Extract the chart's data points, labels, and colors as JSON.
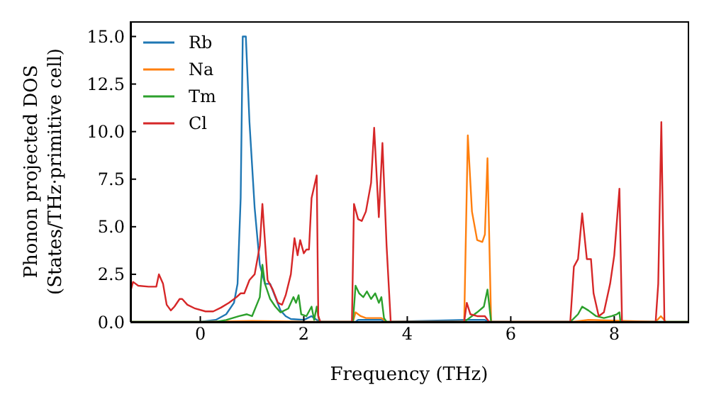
{
  "chart_data": {
    "type": "line",
    "xlabel": "Frequency (THz)",
    "ylabel": "Phonon projected DOS\n(States/THz·primitive cell)",
    "xlim": [
      -1.35,
      9.42
    ],
    "xticks": [
      0,
      2,
      4,
      6,
      8
    ],
    "ylim": [
      0,
      15.8
    ],
    "yticks": [
      {
        "value": 0,
        "label": "0.0"
      },
      {
        "value": 2.5,
        "label": "2.5"
      },
      {
        "value": 5,
        "label": "5.0"
      },
      {
        "value": 7.5,
        "label": "7.5"
      },
      {
        "value": 10,
        "label": "10.0"
      },
      {
        "value": 12.5,
        "label": "12.5"
      },
      {
        "value": 15,
        "label": "15.0"
      }
    ],
    "grid": false,
    "legend": "top left",
    "marker": "none",
    "line_style": "solid",
    "series": [
      {
        "name": "Rb",
        "color": "#1f77b4",
        "x": [
          -1.35,
          0,
          0.3,
          0.5,
          0.65,
          0.72,
          0.78,
          0.82,
          0.88,
          0.95,
          1.05,
          1.15,
          1.25,
          1.35,
          1.45,
          1.55,
          1.65,
          1.75,
          2.0,
          2.15,
          2.25,
          2.3,
          3.0,
          3.05,
          3.5,
          3.6,
          5.15,
          5.5,
          5.6,
          9.42
        ],
        "values": [
          0,
          0,
          0.1,
          0.4,
          1.0,
          2.0,
          6.5,
          15.0,
          15.0,
          10.5,
          6.0,
          3.0,
          2.0,
          2.0,
          1.3,
          0.6,
          0.3,
          0.15,
          0.1,
          0.3,
          0.1,
          0,
          0,
          0.1,
          0.1,
          0,
          0.1,
          0.1,
          0,
          0
        ]
      },
      {
        "name": "Na",
        "color": "#ff7f0e",
        "x": [
          -1.35,
          0,
          1.0,
          2.3,
          2.95,
          3.0,
          3.1,
          3.2,
          3.5,
          3.6,
          5.1,
          5.17,
          5.25,
          5.35,
          5.45,
          5.5,
          5.55,
          5.62,
          7.2,
          7.5,
          8.8,
          8.9,
          9.0,
          9.42
        ],
        "values": [
          0,
          0,
          0.05,
          0,
          0,
          0.5,
          0.3,
          0.2,
          0.2,
          0,
          0,
          9.8,
          5.8,
          4.3,
          4.2,
          4.6,
          8.6,
          0,
          0,
          0.1,
          0,
          0.3,
          0,
          0
        ]
      },
      {
        "name": "Tm",
        "color": "#2ca02c",
        "x": [
          -1.35,
          0.3,
          0.5,
          0.75,
          0.9,
          1.0,
          1.15,
          1.2,
          1.25,
          1.35,
          1.45,
          1.55,
          1.7,
          1.8,
          1.85,
          1.9,
          1.95,
          2.05,
          2.15,
          2.2,
          2.25,
          2.3,
          2.95,
          3.0,
          3.07,
          3.15,
          3.22,
          3.3,
          3.38,
          3.45,
          3.5,
          3.55,
          3.6,
          5.1,
          5.2,
          5.35,
          5.48,
          5.55,
          5.62,
          7.15,
          7.3,
          7.38,
          7.5,
          7.65,
          7.8,
          7.95,
          8.05,
          8.1,
          8.12,
          9.42
        ],
        "values": [
          0,
          0,
          0.1,
          0.3,
          0.4,
          0.3,
          1.3,
          3.0,
          2.0,
          1.2,
          0.8,
          0.5,
          0.7,
          1.3,
          1.0,
          1.4,
          0.4,
          0.3,
          0.8,
          0.1,
          0.8,
          0,
          0,
          1.9,
          1.5,
          1.3,
          1.6,
          1.2,
          1.5,
          1.0,
          1.3,
          0.2,
          0,
          0,
          0.2,
          0.5,
          0.8,
          1.7,
          0,
          0,
          0.4,
          0.8,
          0.6,
          0.3,
          0.2,
          0.3,
          0.4,
          0.5,
          0,
          0
        ]
      },
      {
        "name": "Cl",
        "color": "#d62728",
        "x": [
          -1.35,
          -1.3,
          -1.2,
          -1.0,
          -0.85,
          -0.8,
          -0.72,
          -0.65,
          -0.57,
          -0.5,
          -0.4,
          -0.35,
          -0.25,
          -0.1,
          0.1,
          0.25,
          0.4,
          0.55,
          0.7,
          0.78,
          0.85,
          0.95,
          1.05,
          1.15,
          1.2,
          1.3,
          1.4,
          1.5,
          1.58,
          1.65,
          1.75,
          1.82,
          1.88,
          1.93,
          2.0,
          2.05,
          2.1,
          2.15,
          2.25,
          2.28,
          2.32,
          2.93,
          2.97,
          3.05,
          3.12,
          3.2,
          3.3,
          3.36,
          3.45,
          3.52,
          3.6,
          3.68,
          5.1,
          5.15,
          5.22,
          5.35,
          5.5,
          5.58,
          7.15,
          7.22,
          7.3,
          7.38,
          7.47,
          7.55,
          7.6,
          7.7,
          7.8,
          7.92,
          8.0,
          8.1,
          8.15,
          8.8,
          8.85,
          8.91,
          8.97
        ],
        "values": [
          1.6,
          2.1,
          1.9,
          1.85,
          1.85,
          2.5,
          2.0,
          0.9,
          0.6,
          0.8,
          1.2,
          1.2,
          0.9,
          0.7,
          0.55,
          0.55,
          0.75,
          1.0,
          1.3,
          1.5,
          1.5,
          2.2,
          2.5,
          4.0,
          6.2,
          2.2,
          1.7,
          1.0,
          0.9,
          1.4,
          2.5,
          4.4,
          3.5,
          4.3,
          3.6,
          3.8,
          3.8,
          6.5,
          7.7,
          0.3,
          0,
          0,
          6.2,
          5.4,
          5.3,
          5.8,
          7.3,
          10.2,
          5.5,
          9.4,
          4.0,
          0,
          0,
          1.0,
          0.4,
          0.3,
          0.3,
          0,
          0,
          2.9,
          3.3,
          5.7,
          3.3,
          3.3,
          1.5,
          0.3,
          0.5,
          2.0,
          3.5,
          7.0,
          0,
          0,
          2.0,
          10.5,
          0
        ]
      }
    ]
  }
}
